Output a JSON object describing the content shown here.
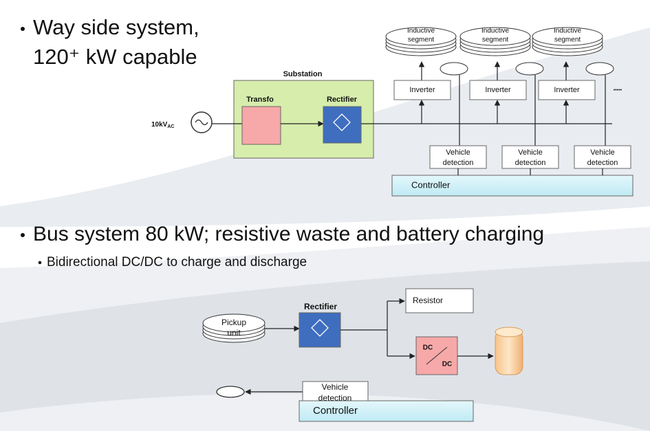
{
  "heading_1": [
    "Way side system,",
    "120⁺ kW capable"
  ],
  "wayside": {
    "source_voltage": "10kV",
    "source_voltage_sub": "AC",
    "substation": "Substation",
    "transfo": "Transfo",
    "rectifier": "Rectifier",
    "segments": [
      [
        "Inductive",
        "segment"
      ],
      [
        "Inductive",
        "segment"
      ],
      [
        "Inductive",
        "segment"
      ]
    ],
    "inverters": [
      "Inverter",
      "Inverter",
      "Inverter"
    ],
    "more": "•••••",
    "detections": [
      [
        "Vehicle",
        "detection"
      ],
      [
        "Vehicle",
        "detection"
      ],
      [
        "Vehicle",
        "detection"
      ]
    ],
    "controller": "Controller"
  },
  "bus": {
    "heading": "Bus system 80 kW; resistive waste and battery charging",
    "subheading": "Bidirectional DC/DC to charge and discharge",
    "pickup": [
      "Pickup",
      "unit"
    ],
    "rectifier": "Rectifier",
    "resistor": "Resistor",
    "dcdc": [
      "DC",
      "DC"
    ],
    "detection": [
      "Vehicle",
      "detection"
    ],
    "controller": "Controller"
  }
}
